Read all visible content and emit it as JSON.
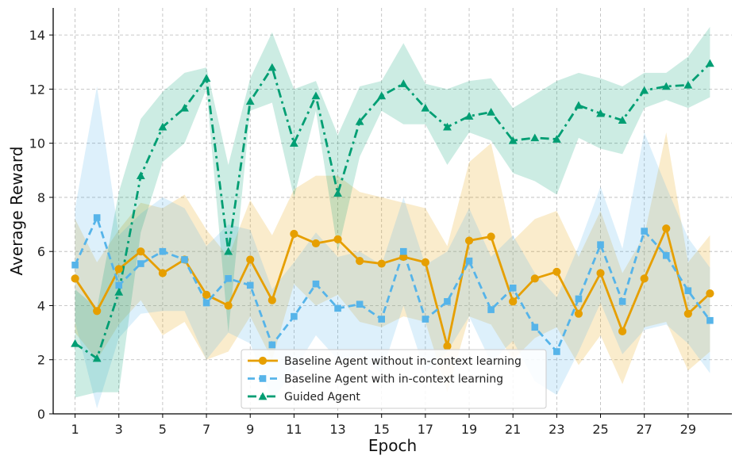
{
  "chart_data": {
    "type": "line",
    "xlabel": "Epoch",
    "ylabel": "Average Reward",
    "xlim": [
      0,
      31
    ],
    "ylim": [
      0,
      15
    ],
    "xticks": [
      1,
      3,
      5,
      7,
      9,
      11,
      13,
      15,
      17,
      19,
      21,
      23,
      25,
      27,
      29
    ],
    "yticks": [
      0,
      2,
      4,
      6,
      8,
      10,
      12,
      14
    ],
    "grid": true,
    "legend_position": "lower-center",
    "x": [
      1,
      2,
      3,
      4,
      5,
      6,
      7,
      8,
      9,
      10,
      11,
      12,
      13,
      14,
      15,
      16,
      17,
      18,
      19,
      20,
      21,
      22,
      23,
      24,
      25,
      26,
      27,
      28,
      29,
      30
    ],
    "series": [
      {
        "name": "Baseline Agent without in-context learning",
        "color": "#E69F00",
        "marker": "circle",
        "linestyle": "solid",
        "values": [
          5.0,
          3.8,
          5.35,
          6.0,
          5.2,
          5.7,
          4.4,
          4.0,
          5.7,
          4.2,
          6.65,
          6.3,
          6.45,
          5.65,
          5.55,
          5.8,
          5.6,
          2.5,
          6.4,
          6.55,
          4.15,
          5.0,
          5.25,
          3.7,
          5.2,
          3.05,
          5.0,
          6.85,
          3.7,
          4.45
        ],
        "upper": [
          7.2,
          5.6,
          6.8,
          7.8,
          7.6,
          8.1,
          6.8,
          5.8,
          7.9,
          6.6,
          8.3,
          8.8,
          8.8,
          8.2,
          8.0,
          7.8,
          7.6,
          6.2,
          9.3,
          10.0,
          6.4,
          7.2,
          7.5,
          5.8,
          7.5,
          5.2,
          6.6,
          10.4,
          5.6,
          6.6
        ],
        "lower": [
          3.0,
          2.0,
          3.3,
          4.2,
          2.9,
          3.4,
          2.0,
          2.3,
          3.6,
          2.0,
          4.8,
          4.0,
          4.4,
          3.4,
          3.2,
          3.6,
          3.4,
          0.8,
          3.6,
          3.3,
          2.0,
          2.8,
          3.2,
          1.8,
          2.9,
          1.1,
          3.2,
          3.4,
          1.6,
          2.3
        ]
      },
      {
        "name": "Baseline Agent with in-context learning",
        "color": "#56B4E9",
        "marker": "square",
        "linestyle": "dashed",
        "values": [
          5.5,
          7.25,
          4.75,
          5.55,
          6.0,
          5.7,
          4.1,
          5.0,
          4.75,
          2.55,
          3.6,
          4.8,
          3.9,
          4.05,
          3.5,
          6.0,
          3.5,
          4.15,
          5.65,
          3.85,
          4.65,
          3.2,
          2.3,
          4.25,
          6.25,
          4.15,
          6.75,
          5.85,
          4.55,
          3.45
        ],
        "upper": [
          7.6,
          12.1,
          6.6,
          7.4,
          8.0,
          7.6,
          6.2,
          7.0,
          6.8,
          4.6,
          5.6,
          6.7,
          5.8,
          6.0,
          5.5,
          8.0,
          5.5,
          6.0,
          7.6,
          5.8,
          6.6,
          5.2,
          4.3,
          6.2,
          8.4,
          6.1,
          10.4,
          8.4,
          6.5,
          5.4
        ],
        "lower": [
          3.4,
          0.2,
          2.8,
          3.7,
          3.8,
          3.8,
          2.0,
          3.0,
          2.6,
          0.5,
          1.6,
          2.9,
          2.0,
          2.1,
          1.5,
          4.0,
          1.5,
          2.3,
          3.6,
          1.9,
          2.7,
          1.2,
          0.7,
          2.3,
          4.1,
          2.2,
          3.1,
          3.3,
          2.6,
          1.5
        ]
      },
      {
        "name": "Guided Agent",
        "color": "#009E73",
        "marker": "triangle",
        "linestyle": "dashdot",
        "values": [
          2.6,
          2.05,
          4.5,
          8.8,
          10.6,
          11.3,
          12.4,
          6.0,
          11.55,
          12.8,
          10.0,
          11.75,
          8.15,
          10.8,
          11.75,
          12.2,
          11.3,
          10.6,
          11.0,
          11.15,
          10.1,
          10.2,
          10.15,
          11.4,
          11.1,
          10.85,
          11.95,
          12.1,
          12.15,
          12.95
        ],
        "upper": [
          4.6,
          3.9,
          8.2,
          10.9,
          11.9,
          12.6,
          12.8,
          9.2,
          12.4,
          14.1,
          12.0,
          12.3,
          10.3,
          12.1,
          12.3,
          13.7,
          12.2,
          12.0,
          12.3,
          12.4,
          11.3,
          11.8,
          12.3,
          12.6,
          12.4,
          12.1,
          12.6,
          12.6,
          13.2,
          14.3
        ],
        "lower": [
          0.6,
          0.8,
          0.8,
          6.7,
          9.3,
          10.0,
          12.0,
          3.0,
          11.2,
          11.5,
          8.0,
          11.2,
          6.0,
          9.5,
          11.2,
          10.7,
          10.7,
          9.2,
          10.4,
          10.1,
          8.9,
          8.6,
          8.1,
          10.2,
          9.8,
          9.6,
          11.3,
          11.6,
          11.3,
          11.7
        ]
      }
    ]
  }
}
